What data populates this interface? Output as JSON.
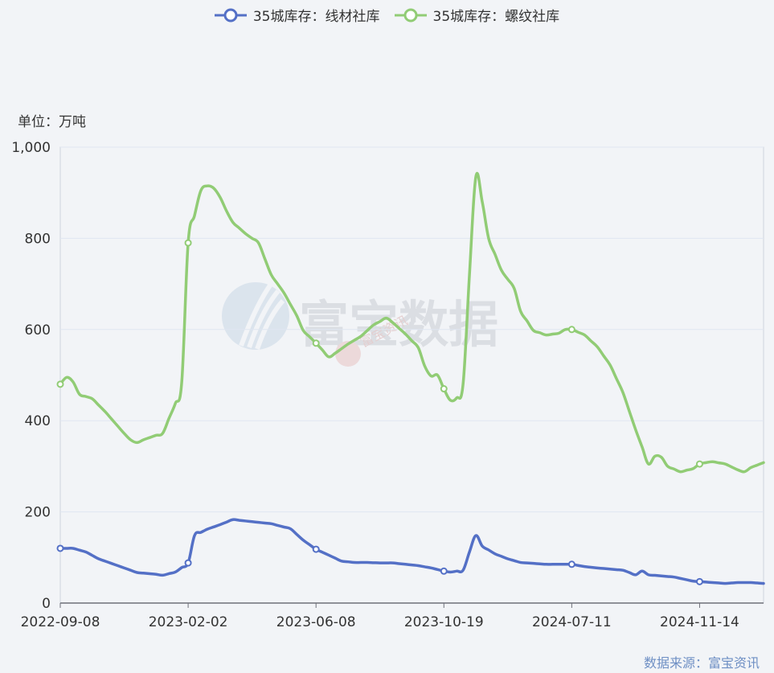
{
  "legend": {
    "wire": "35城库存：线材社库",
    "rebar": "35城库存：螺纹社库"
  },
  "unit_label": "单位：万吨",
  "source_label": "数据来源：富宝资讯",
  "watermark": "富宝数据",
  "watermark_small": "富宝资讯",
  "colors": {
    "wire": "#5470c6",
    "rebar": "#91cc75",
    "grid": "#e0e6f1",
    "axis": "#6e7079"
  },
  "chart_data": {
    "type": "line",
    "xlabel": "",
    "ylabel": "单位：万吨",
    "ylim": [
      0,
      1000
    ],
    "yticks": [
      0,
      200,
      400,
      600,
      800,
      1000
    ],
    "ytick_labels": [
      "0",
      "200",
      "400",
      "600",
      "800",
      "1,000"
    ],
    "x_tick_labels": [
      "2022-09-08",
      "2023-02-02",
      "2023-06-08",
      "2023-10-19",
      "2024-07-11",
      "2024-11-14"
    ],
    "x_tick_indices": [
      0,
      20,
      40,
      60,
      80,
      100
    ],
    "num_points": 111,
    "grid": true,
    "legend_position": "top",
    "series": [
      {
        "name": "35城库存：线材社库",
        "anchors": [
          [
            0,
            120
          ],
          [
            2,
            120
          ],
          [
            4,
            112
          ],
          [
            6,
            97
          ],
          [
            9,
            82
          ],
          [
            12,
            67
          ],
          [
            15,
            63
          ],
          [
            16,
            61
          ],
          [
            18,
            68
          ],
          [
            20,
            88
          ],
          [
            21,
            148
          ],
          [
            23,
            162
          ],
          [
            25,
            172
          ],
          [
            27,
            183
          ],
          [
            29,
            180
          ],
          [
            31,
            177
          ],
          [
            33,
            174
          ],
          [
            36,
            163
          ],
          [
            38,
            138
          ],
          [
            40,
            118
          ],
          [
            42,
            105
          ],
          [
            44,
            92
          ],
          [
            46,
            89
          ],
          [
            48,
            89
          ],
          [
            50,
            88
          ],
          [
            52,
            88
          ],
          [
            54,
            85
          ],
          [
            56,
            82
          ],
          [
            58,
            77
          ],
          [
            60,
            70
          ],
          [
            61,
            68
          ],
          [
            63,
            72
          ],
          [
            64,
            112
          ],
          [
            65,
            148
          ],
          [
            66,
            125
          ],
          [
            68,
            108
          ],
          [
            70,
            97
          ],
          [
            72,
            89
          ],
          [
            76,
            85
          ],
          [
            80,
            85
          ],
          [
            82,
            80
          ],
          [
            84,
            77
          ],
          [
            88,
            72
          ],
          [
            90,
            62
          ],
          [
            91,
            70
          ],
          [
            92,
            62
          ],
          [
            96,
            57
          ],
          [
            99,
            48
          ],
          [
            100,
            47
          ],
          [
            104,
            43
          ],
          [
            106,
            45
          ],
          [
            108,
            45
          ],
          [
            110,
            43
          ]
        ],
        "markers": [
          0,
          20,
          40,
          60,
          80,
          100
        ]
      },
      {
        "name": "35城库存：螺纹社库",
        "anchors": [
          [
            0,
            480
          ],
          [
            1,
            495
          ],
          [
            2,
            485
          ],
          [
            3,
            458
          ],
          [
            5,
            448
          ],
          [
            7,
            420
          ],
          [
            10,
            372
          ],
          [
            11,
            358
          ],
          [
            12,
            352
          ],
          [
            13,
            358
          ],
          [
            15,
            368
          ],
          [
            16,
            372
          ],
          [
            18,
            438
          ],
          [
            19,
            485
          ],
          [
            20,
            790
          ],
          [
            21,
            850
          ],
          [
            22,
            905
          ],
          [
            23,
            915
          ],
          [
            24,
            910
          ],
          [
            25,
            890
          ],
          [
            26,
            860
          ],
          [
            27,
            835
          ],
          [
            29,
            810
          ],
          [
            31,
            790
          ],
          [
            33,
            720
          ],
          [
            35,
            680
          ],
          [
            37,
            630
          ],
          [
            38,
            598
          ],
          [
            40,
            570
          ],
          [
            41,
            555
          ],
          [
            42,
            540
          ],
          [
            43,
            548
          ],
          [
            45,
            568
          ],
          [
            47,
            585
          ],
          [
            49,
            610
          ],
          [
            51,
            625
          ],
          [
            52,
            615
          ],
          [
            54,
            590
          ],
          [
            56,
            560
          ],
          [
            57,
            520
          ],
          [
            58,
            498
          ],
          [
            59,
            500
          ],
          [
            60,
            470
          ],
          [
            61,
            445
          ],
          [
            62,
            450
          ],
          [
            63,
            480
          ],
          [
            64,
            720
          ],
          [
            65,
            935
          ],
          [
            66,
            880
          ],
          [
            67,
            800
          ],
          [
            69,
            730
          ],
          [
            71,
            690
          ],
          [
            72,
            640
          ],
          [
            74,
            598
          ],
          [
            76,
            588
          ],
          [
            78,
            592
          ],
          [
            79,
            600
          ],
          [
            80,
            600
          ],
          [
            82,
            588
          ],
          [
            84,
            562
          ],
          [
            86,
            522
          ],
          [
            88,
            462
          ],
          [
            90,
            380
          ],
          [
            92,
            305
          ],
          [
            93,
            322
          ],
          [
            94,
            320
          ],
          [
            95,
            300
          ],
          [
            97,
            288
          ],
          [
            99,
            295
          ],
          [
            100,
            305
          ],
          [
            101,
            308
          ],
          [
            102,
            310
          ],
          [
            104,
            305
          ],
          [
            106,
            292
          ],
          [
            107,
            288
          ],
          [
            108,
            297
          ],
          [
            110,
            308
          ]
        ],
        "markers": [
          0,
          20,
          40,
          60,
          80,
          100
        ]
      }
    ]
  }
}
